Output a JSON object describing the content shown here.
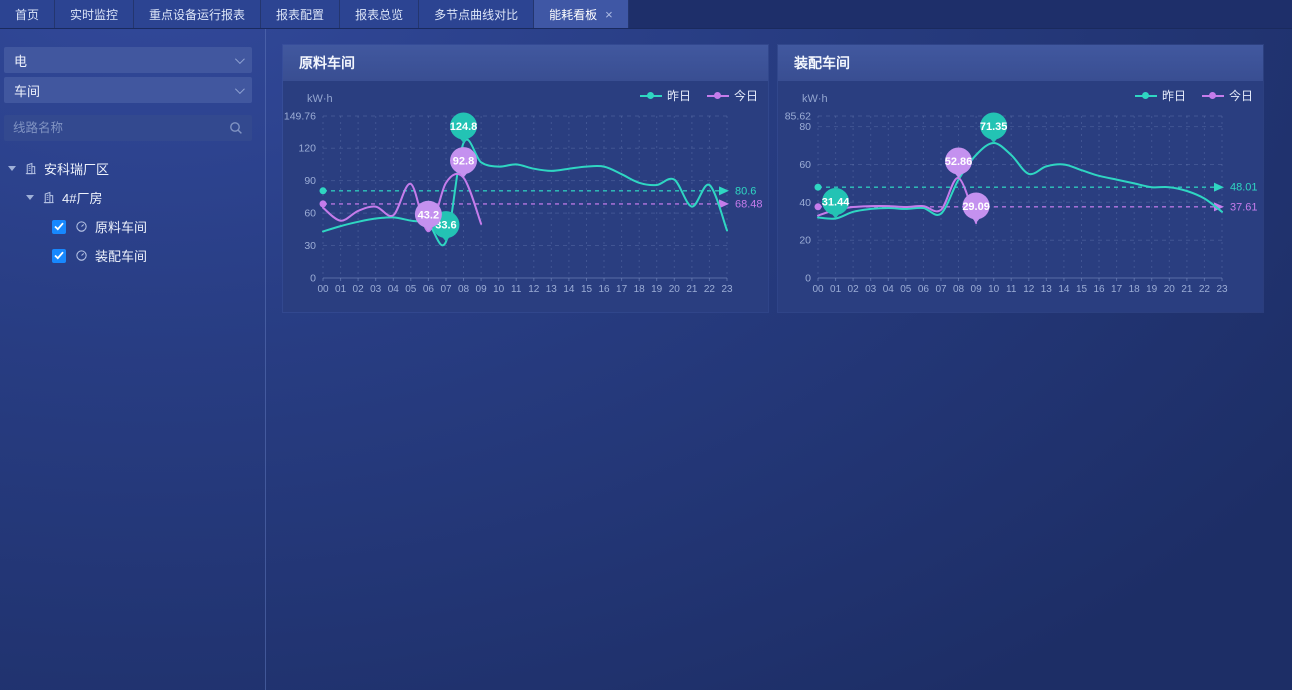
{
  "nav": {
    "tabs": [
      {
        "label": "首页",
        "active": false,
        "closable": false
      },
      {
        "label": "实时监控",
        "active": false,
        "closable": false
      },
      {
        "label": "重点设备运行报表",
        "active": false,
        "closable": false
      },
      {
        "label": "报表配置",
        "active": false,
        "closable": false
      },
      {
        "label": "报表总览",
        "active": false,
        "closable": false
      },
      {
        "label": "多节点曲线对比",
        "active": false,
        "closable": false
      },
      {
        "label": "能耗看板",
        "active": true,
        "closable": true,
        "close_glyph": "×"
      }
    ]
  },
  "sidebar": {
    "selects": [
      {
        "value": "电"
      },
      {
        "value": "车间"
      }
    ],
    "search": {
      "placeholder": "线路名称",
      "icon": "magnifier"
    },
    "tree": [
      {
        "label": "安科瑞厂区",
        "level": 0,
        "type": "folder",
        "expanded": true,
        "icon": "building-icon"
      },
      {
        "label": "4#厂房",
        "level": 1,
        "type": "folder",
        "expanded": true,
        "icon": "building-icon"
      },
      {
        "label": "原料车间",
        "level": 2,
        "type": "leaf",
        "checked": true,
        "icon": "gauge-icon"
      },
      {
        "label": "装配车间",
        "level": 2,
        "type": "leaf",
        "checked": true,
        "icon": "gauge-icon"
      }
    ]
  },
  "colors": {
    "yesterday": "#2fd6c2",
    "today": "#c57ceb",
    "yesterday_pin": "#23c3b4",
    "today_pin": "#c491ef",
    "checkbox": "#1788ff",
    "axis_text": "#9cadd6",
    "grid": "rgba(150,170,215,0.22)"
  },
  "chart_data": [
    {
      "type": "line",
      "title": "原料车间",
      "unit": "kW·h",
      "x": [
        "00",
        "01",
        "02",
        "03",
        "04",
        "05",
        "06",
        "07",
        "08",
        "09",
        "10",
        "11",
        "12",
        "13",
        "14",
        "15",
        "16",
        "17",
        "18",
        "19",
        "20",
        "21",
        "22",
        "23"
      ],
      "y_ticks": [
        0,
        30,
        60,
        90,
        120,
        149.76
      ],
      "ylim": [
        0,
        149.76
      ],
      "grid": true,
      "legend_position": "top-right",
      "series": [
        {
          "name": "昨日",
          "values": [
            43,
            48,
            52,
            55,
            56,
            53,
            50,
            33.6,
            124.8,
            107,
            103,
            105,
            101,
            99,
            101,
            103,
            103,
            96,
            88,
            86,
            91,
            66,
            86,
            44
          ],
          "avg": 80.6,
          "avg_label": "80.6",
          "max": {
            "x": 8,
            "value": 124.8,
            "label": "124.8"
          },
          "min": {
            "x": 7,
            "value": 33.6,
            "label": "33.6"
          }
        },
        {
          "name": "今日",
          "values": [
            65,
            53,
            62,
            66,
            58,
            87,
            43.2,
            88,
            92.8,
            50
          ],
          "avg": 68.48,
          "avg_label": "68.48",
          "max": {
            "x": 8,
            "value": 92.8,
            "label": "92.8"
          },
          "min": {
            "x": 6,
            "value": 43.2,
            "label": "43.2"
          }
        }
      ]
    },
    {
      "type": "line",
      "title": "装配车间",
      "unit": "kW·h",
      "x": [
        "00",
        "01",
        "02",
        "03",
        "04",
        "05",
        "06",
        "07",
        "08",
        "09",
        "10",
        "11",
        "12",
        "13",
        "14",
        "15",
        "16",
        "17",
        "18",
        "19",
        "20",
        "21",
        "22",
        "23"
      ],
      "y_ticks": [
        0,
        20,
        40,
        60,
        80,
        85.62
      ],
      "ylim": [
        0,
        85.62
      ],
      "grid": true,
      "legend_position": "top-right",
      "series": [
        {
          "name": "昨日",
          "values": [
            32,
            31.44,
            35,
            36.5,
            37,
            36.5,
            37,
            34,
            52,
            65,
            71.35,
            65,
            55,
            59,
            60,
            57,
            54,
            52,
            50,
            48,
            48,
            46,
            42,
            35
          ],
          "avg": 48.01,
          "avg_label": "48.01",
          "max": {
            "x": 10,
            "value": 71.35,
            "label": "71.35"
          },
          "min": {
            "x": 1,
            "value": 31.44,
            "label": "31.44"
          }
        },
        {
          "name": "今日",
          "values": [
            33,
            36,
            37.5,
            38,
            38,
            37.5,
            38,
            36,
            52.86,
            29.09
          ],
          "avg": 37.61,
          "avg_label": "37.61",
          "max": {
            "x": 8,
            "value": 52.86,
            "label": "52.86"
          },
          "min": {
            "x": 9,
            "value": 29.09,
            "label": "29.09"
          }
        }
      ]
    }
  ]
}
